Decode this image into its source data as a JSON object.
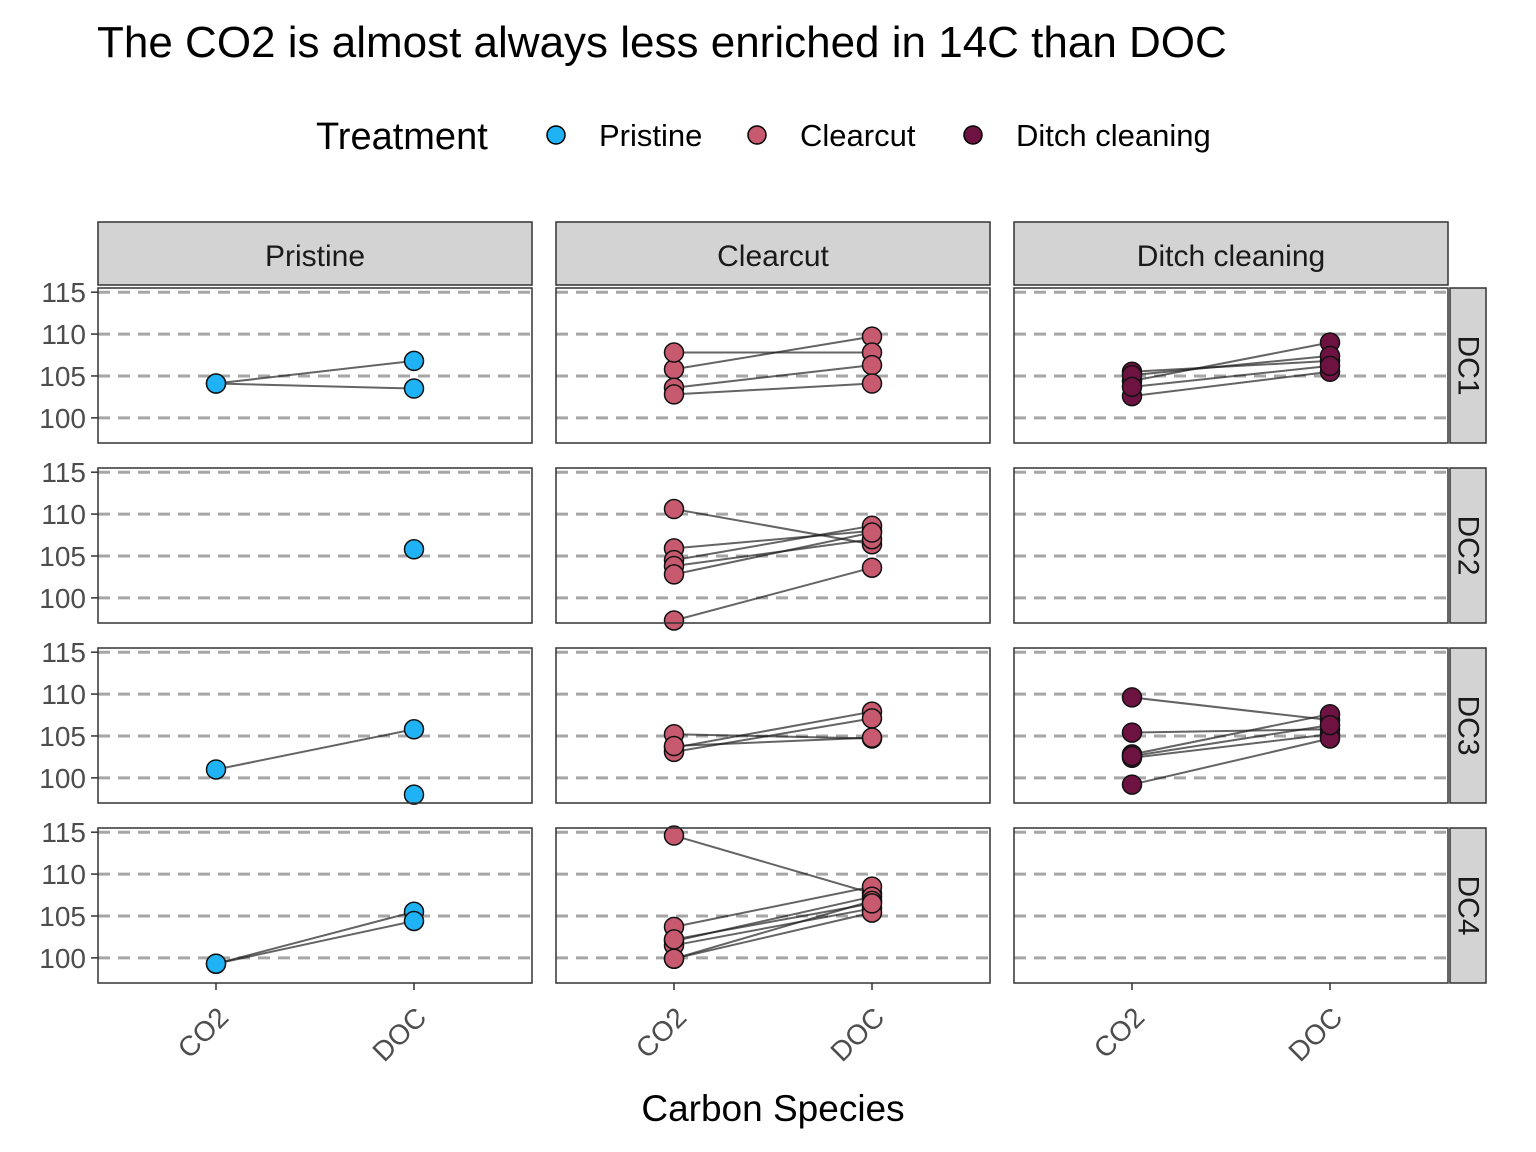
{
  "chart_data": {
    "type": "scatter",
    "title": "The CO2 is almost always less enriched in 14C than DOC",
    "xlabel": "Carbon Species",
    "ylabel": "",
    "x_categories": [
      "CO2",
      "DOC"
    ],
    "y_ticks": [
      100,
      105,
      110,
      115
    ],
    "ylim": [
      97,
      115.5
    ],
    "grid": "dashed horizontal at y ticks",
    "legend": {
      "title": "Treatment",
      "position": "top",
      "entries": [
        {
          "label": "Pristine",
          "color": "#1fb3f5"
        },
        {
          "label": "Clearcut",
          "color": "#c75a6e"
        },
        {
          "label": "Ditch cleaning",
          "color": "#6e1242"
        }
      ]
    },
    "facet_columns": [
      "Pristine",
      "Clearcut",
      "Ditch cleaning"
    ],
    "facet_rows": [
      "DC1",
      "DC2",
      "DC3",
      "DC4"
    ],
    "panels": [
      {
        "row": "DC1",
        "col": "Pristine",
        "pairs": [
          [
            104.1,
            106.8
          ],
          [
            104.1,
            103.5
          ]
        ],
        "co2_only": [],
        "doc_only": []
      },
      {
        "row": "DC1",
        "col": "Clearcut",
        "pairs": [
          [
            105.8,
            109.7
          ],
          [
            107.8,
            107.8
          ],
          [
            103.6,
            106.3
          ],
          [
            102.8,
            104.1
          ]
        ],
        "co2_only": [],
        "doc_only": []
      },
      {
        "row": "DC1",
        "col": "Ditch cleaning",
        "pairs": [
          [
            105.5,
            106.8
          ],
          [
            104.4,
            109.0
          ],
          [
            105.1,
            107.4
          ],
          [
            102.6,
            105.5
          ],
          [
            103.7,
            106.2
          ]
        ],
        "co2_only": [],
        "doc_only": []
      },
      {
        "row": "DC2",
        "col": "Pristine",
        "pairs": [],
        "co2_only": [],
        "doc_only": [
          105.8
        ]
      },
      {
        "row": "DC2",
        "col": "Clearcut",
        "pairs": [
          [
            110.6,
            106.4
          ],
          [
            105.9,
            108.0
          ],
          [
            104.5,
            108.6
          ],
          [
            103.8,
            107.0
          ],
          [
            102.8,
            107.8
          ],
          [
            97.3,
            103.6
          ]
        ],
        "co2_only": [],
        "doc_only": []
      },
      {
        "row": "DC2",
        "col": "Ditch cleaning",
        "pairs": [],
        "co2_only": [],
        "doc_only": []
      },
      {
        "row": "DC3",
        "col": "Pristine",
        "pairs": [
          [
            101.0,
            105.8
          ]
        ],
        "co2_only": [],
        "doc_only": [
          98.0
        ]
      },
      {
        "row": "DC3",
        "col": "Clearcut",
        "pairs": [
          [
            105.2,
            104.7
          ],
          [
            103.6,
            107.9
          ],
          [
            103.1,
            107.1
          ],
          [
            103.8,
            104.8
          ]
        ],
        "co2_only": [],
        "doc_only": []
      },
      {
        "row": "DC3",
        "col": "Ditch cleaning",
        "pairs": [
          [
            109.6,
            106.9
          ],
          [
            105.4,
            105.8
          ],
          [
            102.8,
            107.6
          ],
          [
            102.4,
            105.2
          ],
          [
            99.2,
            104.7
          ],
          [
            102.6,
            106.3
          ]
        ],
        "co2_only": [],
        "doc_only": []
      },
      {
        "row": "DC4",
        "col": "Pristine",
        "pairs": [
          [
            99.3,
            105.5
          ],
          [
            99.3,
            104.4
          ]
        ],
        "co2_only": [],
        "doc_only": []
      },
      {
        "row": "DC4",
        "col": "Clearcut",
        "pairs": [
          [
            114.6,
            107.7
          ],
          [
            103.7,
            108.5
          ],
          [
            102.0,
            107.3
          ],
          [
            101.5,
            105.9
          ],
          [
            99.9,
            106.8
          ],
          [
            99.9,
            105.4
          ],
          [
            102.2,
            106.5
          ]
        ],
        "co2_only": [],
        "doc_only": []
      },
      {
        "row": "DC4",
        "col": "Ditch cleaning",
        "pairs": [],
        "co2_only": [],
        "doc_only": []
      }
    ]
  }
}
